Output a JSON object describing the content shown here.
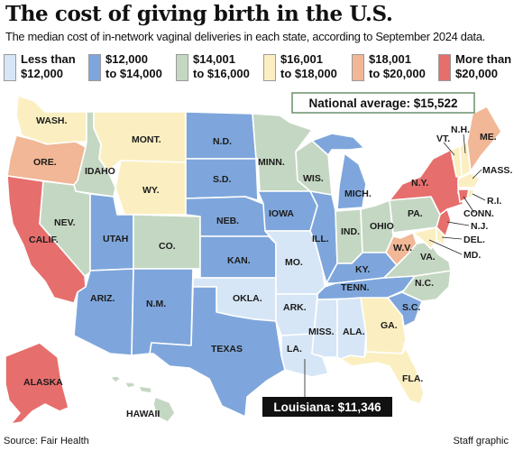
{
  "title": "The cost of giving birth in the U.S.",
  "subtitle": "The median cost of in-network vaginal deliveries in each state, according to September 2024 data.",
  "legend": [
    {
      "label": "Less than\n$12,000",
      "color": "#d6e6f6"
    },
    {
      "label": "$12,000\nto $14,000",
      "color": "#7ea6dc"
    },
    {
      "label": "$14,001\nto $16,000",
      "color": "#c4d7c2"
    },
    {
      "label": "$16,001\nto $18,000",
      "color": "#fbefc1"
    },
    {
      "label": "$18,001\nto $20,000",
      "color": "#f1b796"
    },
    {
      "label": "More than\n$20,000",
      "color": "#e66e6c"
    }
  ],
  "national_average": "National average: $15,522",
  "louisiana_callout": "Louisiana: $11,346",
  "states": {
    "WASH.": "$16,001 to $18,000",
    "ORE.": "$18,001 to $20,000",
    "CALIF.": "More than $20,000",
    "IDAHO": "$14,001 to $16,000",
    "NEV.": "$14,001 to $16,000",
    "MONT.": "$16,001 to $18,000",
    "WY.": "$16,001 to $18,000",
    "UTAH": "$12,000 to $14,000",
    "CO.": "$14,001 to $16,000",
    "ARIZ.": "$12,000 to $14,000",
    "N.M.": "$12,000 to $14,000",
    "N.D.": "$12,000 to $14,000",
    "S.D.": "$12,000 to $14,000",
    "NEB.": "$12,000 to $14,000",
    "KAN.": "$12,000 to $14,000",
    "OKLA.": "Less than $12,000",
    "TEXAS": "$12,000 to $14,000",
    "MINN.": "$14,001 to $16,000",
    "IOWA": "$12,000 to $14,000",
    "MO.": "Less than $12,000",
    "ARK.": "Less than $12,000",
    "LA.": "Less than $12,000",
    "WIS.": "$14,001 to $16,000",
    "ILL.": "$12,000 to $14,000",
    "MICH.": "$12,000 to $14,000",
    "IND.": "$14,001 to $16,000",
    "OHIO": "$14,001 to $16,000",
    "KY.": "$12,000 to $14,000",
    "TENN.": "$12,000 to $14,000",
    "MISS.": "Less than $12,000",
    "ALA.": "Less than $12,000",
    "GA.": "$16,001 to $18,000",
    "FLA.": "$16,001 to $18,000",
    "S.C.": "$12,000 to $14,000",
    "N.C.": "$14,001 to $16,000",
    "VA.": "$14,001 to $16,000",
    "W.V.": "$18,001 to $20,000",
    "PA.": "$14,001 to $16,000",
    "N.Y.": "More than $20,000",
    "VT.": "$16,001 to $18,000",
    "N.H.": "$16,001 to $18,000",
    "ME.": "$18,001 to $20,000",
    "MASS.": "$16,001 to $18,000",
    "R.I.": "$16,001 to $18,000",
    "CONN.": "More than $20,000",
    "N.J.": "More than $20,000",
    "DEL.": "$16,001 to $18,000",
    "MD.": "$16,001 to $18,000",
    "ALASKA": "More than $20,000",
    "HAWAII": "$14,001 to $16,000"
  },
  "source": "Source: Fair Health",
  "credit": "Staff graphic"
}
